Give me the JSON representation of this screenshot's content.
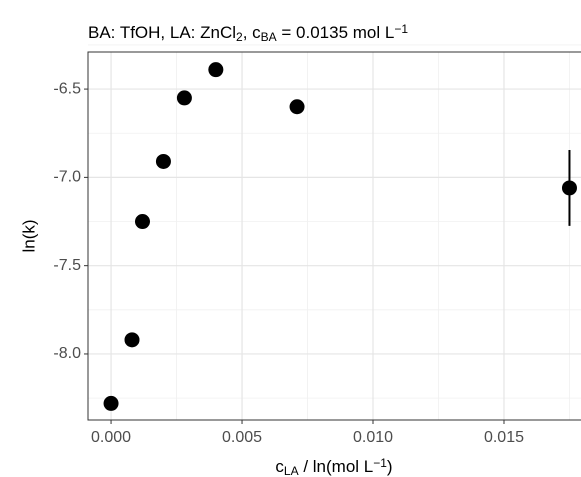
{
  "chart_data": {
    "type": "scatter",
    "title": [
      {
        "text": "BA: TfOH, LA: ZnCl"
      },
      {
        "text": "2",
        "shift": "sub"
      },
      {
        "text": ", c"
      },
      {
        "text": "BA",
        "shift": "sub"
      },
      {
        "text": " = 0.0135 mol L"
      },
      {
        "text": "−1",
        "shift": "super"
      }
    ],
    "x_label": [
      {
        "text": "c"
      },
      {
        "text": "LA",
        "shift": "sub"
      },
      {
        "text": " / ln(mol L"
      },
      {
        "text": "−1",
        "shift": "super"
      },
      {
        "text": ")"
      }
    ],
    "y_label": "ln(k)",
    "x": [
      0,
      0.0008,
      0.0012,
      0.002,
      0.0028,
      0.004,
      0.0071,
      0.0175
    ],
    "series": [
      {
        "color": "#000000",
        "values": [
          -8.28,
          -7.92,
          -7.25,
          -6.91,
          -6.55,
          -6.39,
          -6.6,
          -7.06
        ],
        "errors": [
          null,
          null,
          null,
          null,
          null,
          null,
          null,
          0.215
        ]
      }
    ],
    "xlim": [
      -0.00088,
      0.01794
    ],
    "ylim": [
      -8.374,
      -6.29
    ],
    "xticks": [
      {
        "value": 0,
        "label": "0.000"
      },
      {
        "value": 0.005,
        "label": "0.005"
      },
      {
        "value": 0.01,
        "label": "0.010"
      },
      {
        "value": 0.015,
        "label": "0.015"
      }
    ],
    "yticks": [
      -6.5,
      {
        "value": -7,
        "label": "-7.0"
      },
      -7.5,
      {
        "value": -8,
        "label": "-8.0"
      }
    ],
    "x_minor_grid": [
      0.0025,
      0.0075,
      0.0125,
      0.0175
    ],
    "y_minor_grid": [
      -6.25,
      -6.75,
      -7.25,
      -7.75,
      -8.25
    ],
    "grid": true
  }
}
